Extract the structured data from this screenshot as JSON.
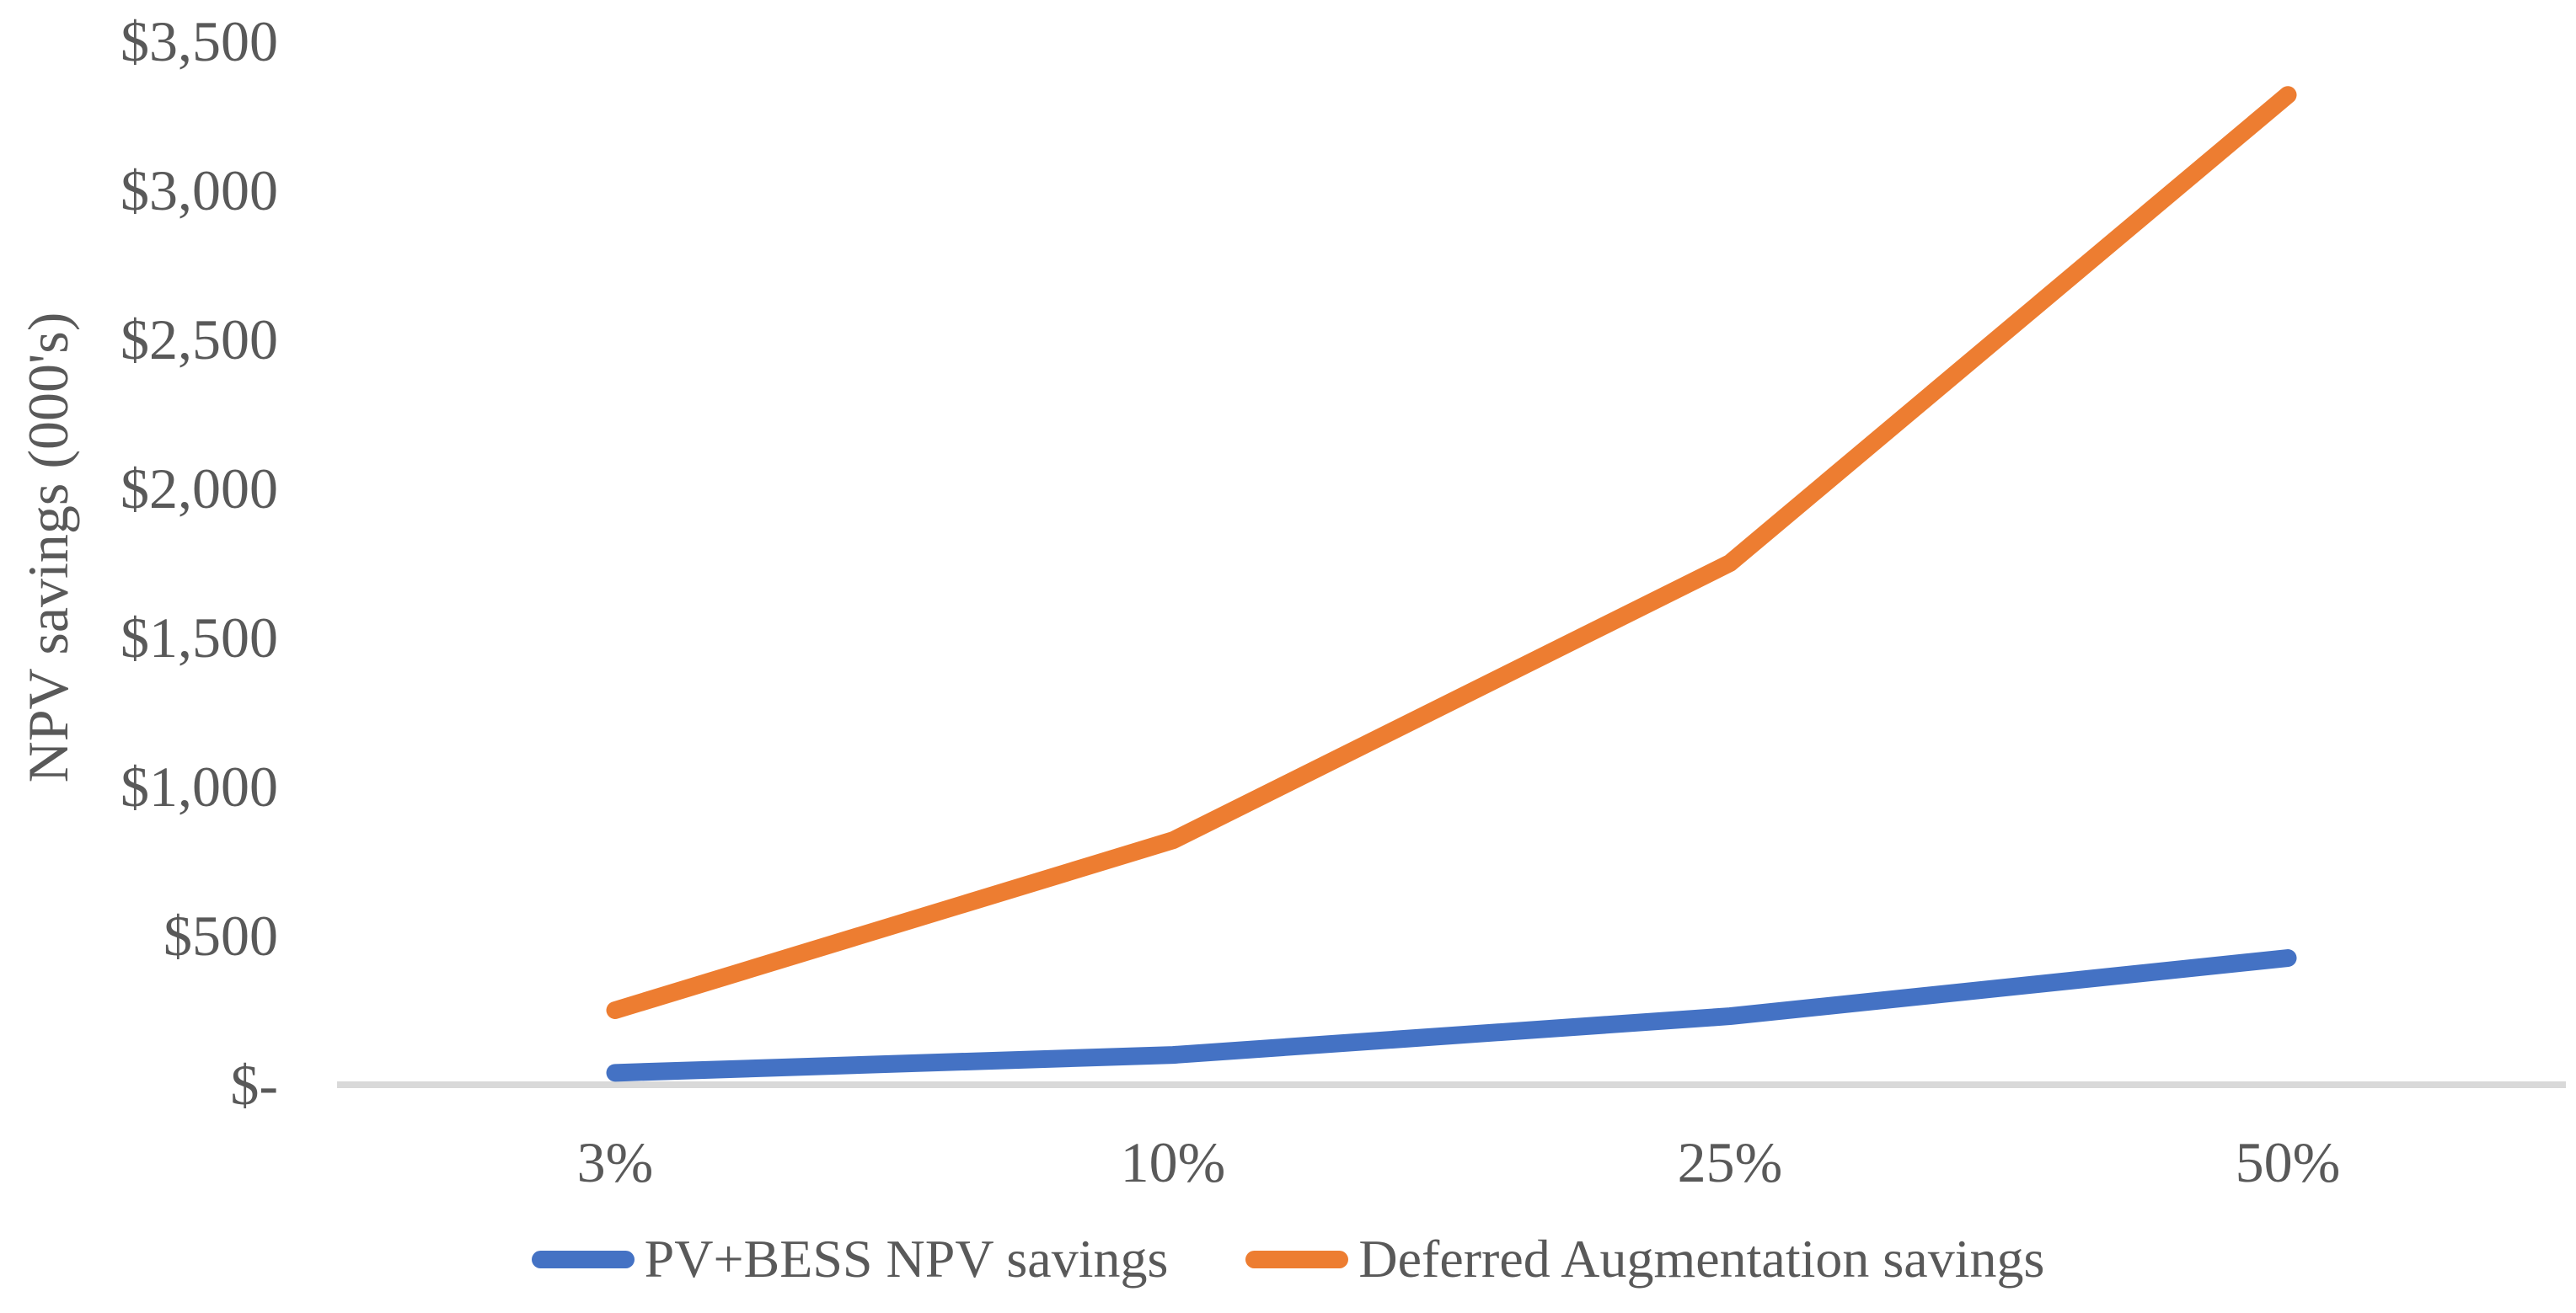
{
  "chart_data": {
    "type": "line",
    "title": "",
    "xlabel": "",
    "ylabel": "NPV savings (000's)",
    "units": "thousands of dollars",
    "categories": [
      "3%",
      "10%",
      "25%",
      "50%"
    ],
    "series": [
      {
        "name": "PV+BESS NPV savings",
        "color": "#4472C4",
        "values": [
          40,
          100,
          230,
          425
        ]
      },
      {
        "name": "Deferred Augmentation savings",
        "color": "#ED7D31",
        "values": [
          250,
          820,
          1750,
          3320
        ]
      }
    ],
    "y_ticks": [
      {
        "label": "$-",
        "value": 0
      },
      {
        "label": "$500",
        "value": 500
      },
      {
        "label": "$1,000",
        "value": 1000
      },
      {
        "label": "$1,500",
        "value": 1500
      },
      {
        "label": "$2,000",
        "value": 2000
      },
      {
        "label": "$2,500",
        "value": 2500
      },
      {
        "label": "$3,000",
        "value": 3000
      },
      {
        "label": "$3,500",
        "value": 3500
      }
    ],
    "ylim": [
      0,
      3500
    ],
    "grid": false,
    "legend_position": "bottom",
    "axis_line_color": "#D9D9D9",
    "text_color": "#595959",
    "background_color": "#FFFFFF"
  }
}
